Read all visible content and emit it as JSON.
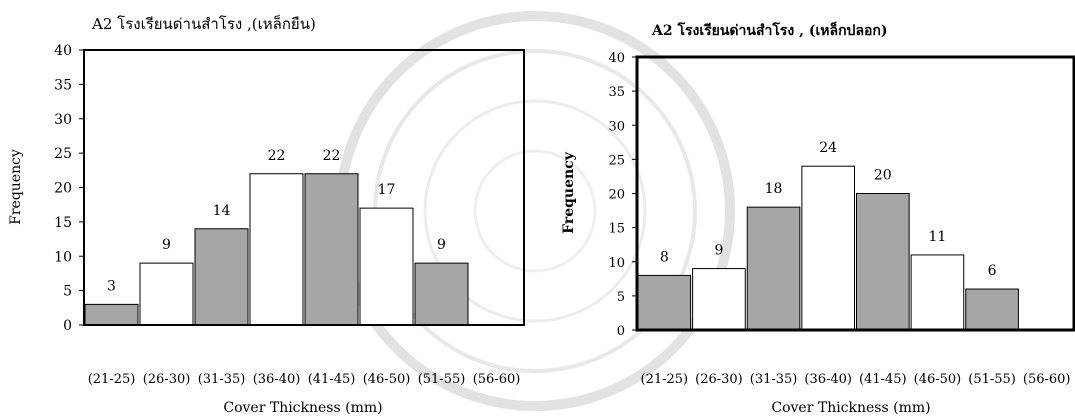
{
  "chart_data": [
    {
      "type": "bar",
      "title": "A2 โรงเรียนด่านสำโรง ,(เหล็กยืน)",
      "xlabel": "Cover Thickness (mm)",
      "ylabel": "Frequency",
      "categories": [
        "(21-25)",
        "(26-30)",
        "(31-35)",
        "(36-40)",
        "(41-45)",
        "(46-50)",
        "(51-55)",
        "(56-60)"
      ],
      "values": [
        3,
        9,
        14,
        22,
        22,
        17,
        9,
        0
      ],
      "data_labels": [
        "3",
        "9",
        "14",
        "22",
        "22",
        "17",
        "9",
        ""
      ],
      "bar_colors": [
        "#a6a6a6",
        "#ffffff",
        "#a6a6a6",
        "#ffffff",
        "#a6a6a6",
        "#ffffff",
        "#a6a6a6",
        "#ffffff"
      ],
      "ylim": [
        0,
        40
      ],
      "yticks": [
        0,
        5,
        10,
        15,
        20,
        25,
        30,
        35,
        40
      ],
      "grid": false,
      "legend": "none"
    },
    {
      "type": "bar",
      "title": "A2 โรงเรียนด่านสำโรง , (เหล็กปลอก)",
      "xlabel": "Cover Thickness (mm)",
      "ylabel": "Frequency",
      "categories": [
        "(21-25)",
        "(26-30)",
        "(31-35)",
        "(36-40)",
        "(41-45)",
        "(46-50)",
        "(51-55)",
        "(56-60)"
      ],
      "values": [
        8,
        9,
        18,
        24,
        20,
        11,
        6,
        0
      ],
      "data_labels": [
        "8",
        "9",
        "18",
        "24",
        "20",
        "11",
        "6",
        ""
      ],
      "bar_colors": [
        "#a6a6a6",
        "#ffffff",
        "#a6a6a6",
        "#ffffff",
        "#a6a6a6",
        "#ffffff",
        "#a6a6a6",
        "#ffffff"
      ],
      "ylim": [
        0,
        40
      ],
      "yticks": [
        0,
        5,
        10,
        15,
        20,
        25,
        30,
        35,
        40
      ],
      "grid": false,
      "legend": "none"
    }
  ],
  "colors": {
    "bar_fill_gray": "#a6a6a6",
    "bar_fill_white": "#ffffff",
    "plot_border": "#000000",
    "text": "#000000"
  }
}
